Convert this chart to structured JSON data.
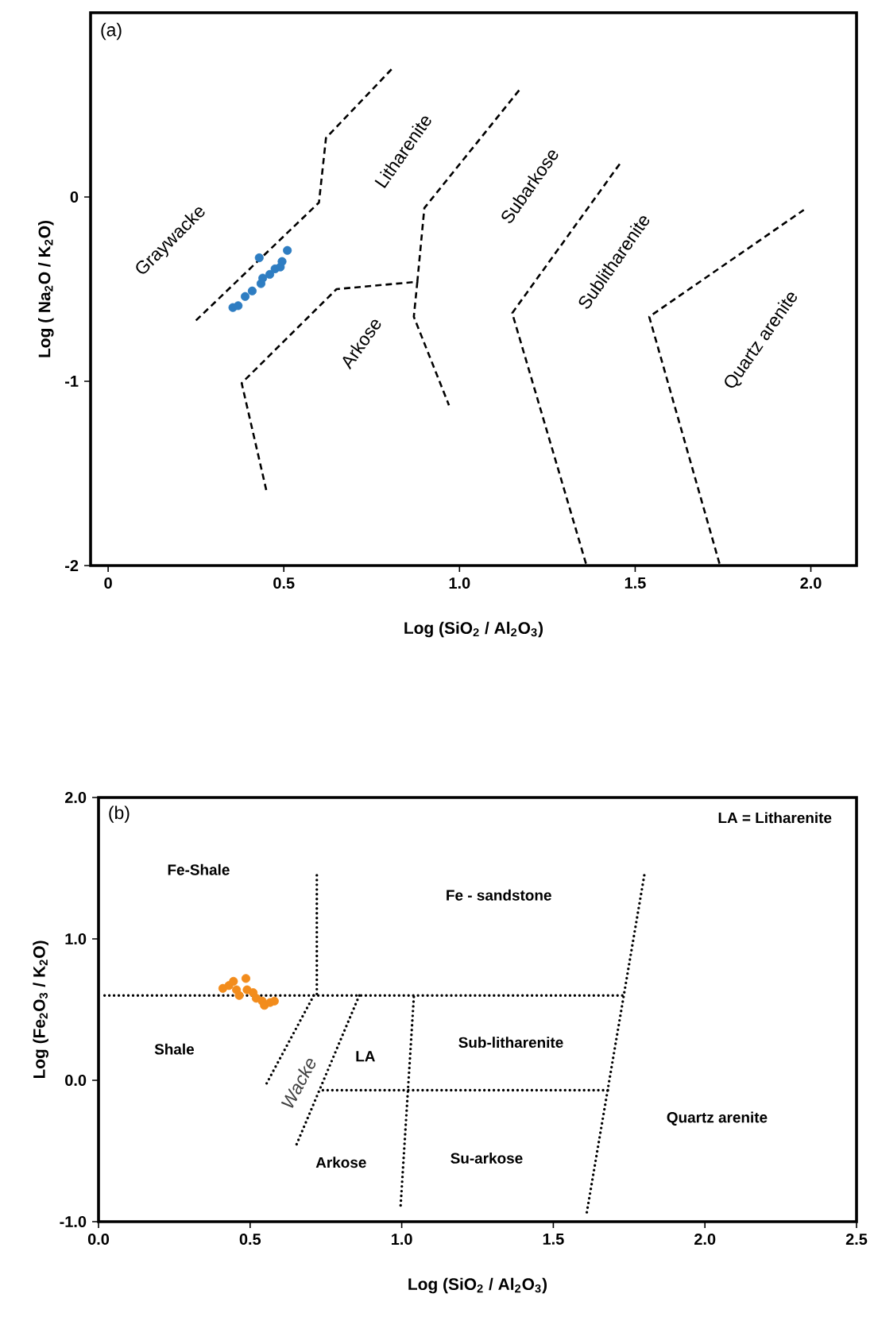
{
  "chart_data": [
    {
      "type": "scatter",
      "xlabel": "Log (SiO$_{2}$ / Al$_{2}$O$_{3}$)",
      "ylabel": "Log ( Na$_{2}$O / K$_{2}$O)",
      "xlim": [
        -0.05,
        2.13
      ],
      "ylim": [
        -2,
        1
      ],
      "xticks": [
        0,
        0.5,
        {
          "value": 1,
          "label": "1.0"
        },
        1.5,
        {
          "value": 2,
          "label": "2.0"
        }
      ],
      "yticks": [
        -2,
        -1,
        0
      ],
      "series": [
        {
          "marker": "circle",
          "color": "#2e7dc2",
          "x": [
            0.355,
            0.37,
            0.39,
            0.41,
            0.435,
            0.44,
            0.46,
            0.475,
            0.49,
            0.495,
            0.51,
            0.43
          ],
          "values": [
            -0.6,
            -0.59,
            -0.54,
            -0.51,
            -0.47,
            -0.44,
            -0.42,
            -0.39,
            -0.38,
            -0.35,
            -0.29,
            -0.33
          ]
        },
        {
          "type": "line",
          "line_style": "dashed",
          "color": "#000000",
          "x": [
            0.25,
            0.6,
            0.62,
            0.81
          ],
          "values": [
            -0.67,
            -0.03,
            0.32,
            0.7
          ]
        },
        {
          "type": "line",
          "line_style": "dashed",
          "color": "#000000",
          "x": [
            0.45,
            0.38,
            0.65,
            0.88,
            0.9,
            1.17
          ],
          "values": [
            -1.59,
            -1.01,
            -0.5,
            -0.46,
            -0.06,
            0.58
          ]
        },
        {
          "type": "line",
          "line_style": "dashed",
          "color": "#000000",
          "x": [
            0.88,
            0.87,
            0.97
          ],
          "values": [
            -0.46,
            -0.65,
            -1.13
          ]
        },
        {
          "type": "line",
          "line_style": "dashed",
          "color": "#000000",
          "x": [
            1.36,
            1.15,
            1.46
          ],
          "values": [
            -1.99,
            -0.63,
            0.19
          ]
        },
        {
          "type": "line",
          "line_style": "dashed",
          "color": "#000000",
          "x": [
            1.74,
            1.54,
            1.98
          ],
          "values": [
            -1.99,
            -0.65,
            -0.07
          ]
        }
      ],
      "annotations": [
        "(a)",
        "Graywacke",
        "Litharenite",
        "Subarkose",
        "Sublitharenite",
        "Quartz arenite",
        "Arkose"
      ]
    },
    {
      "type": "scatter",
      "xlabel": "Log (SiO$_{2}$ / Al$_{2}$O$_{3}$)",
      "ylabel": "Log (Fe$_{2}$O$_{3}$ / K$_{2}$O)",
      "xlim": [
        0,
        2.5
      ],
      "ylim": [
        -1,
        2
      ],
      "xticks": [
        {
          "value": 0,
          "label": "0.0"
        },
        0.5,
        {
          "value": 1,
          "label": "1.0"
        },
        1.5,
        {
          "value": 2,
          "label": "2.0"
        },
        2.5
      ],
      "yticks": [
        {
          "value": -1,
          "label": "-1.0"
        },
        {
          "value": 0,
          "label": "0.0"
        },
        {
          "value": 1,
          "label": "1.0"
        },
        {
          "value": 2,
          "label": "2.0"
        }
      ],
      "series": [
        {
          "marker": "circle",
          "color": "#f28c1c",
          "x": [
            0.41,
            0.43,
            0.445,
            0.486,
            0.464,
            0.455,
            0.49,
            0.51,
            0.52,
            0.54,
            0.547,
            0.566,
            0.58
          ],
          "values": [
            0.65,
            0.67,
            0.7,
            0.72,
            0.6,
            0.64,
            0.64,
            0.62,
            0.58,
            0.56,
            0.53,
            0.55,
            0.56
          ]
        },
        {
          "type": "line",
          "line_style": "dotted",
          "color": "#000000",
          "x": [
            0.02,
            1.74
          ],
          "values": [
            0.6,
            0.6
          ]
        },
        {
          "type": "line",
          "line_style": "dotted",
          "color": "#000000",
          "x": [
            0.72,
            0.72
          ],
          "values": [
            1.45,
            0.6
          ]
        },
        {
          "type": "line",
          "line_style": "dotted",
          "color": "#000000",
          "x": [
            0.71,
            0.55
          ],
          "values": [
            0.6,
            -0.04
          ]
        },
        {
          "type": "line",
          "line_style": "dotted",
          "color": "#000000",
          "x": [
            0.86,
            0.65
          ],
          "values": [
            0.6,
            -0.47
          ]
        },
        {
          "type": "line",
          "line_style": "dotted",
          "color": "#000000",
          "x": [
            1.04,
            0.996
          ],
          "values": [
            0.59,
            -0.9
          ]
        },
        {
          "type": "line",
          "line_style": "dotted",
          "color": "#000000",
          "x": [
            0.74,
            1.69
          ],
          "values": [
            -0.07,
            -0.07
          ]
        },
        {
          "type": "line",
          "line_style": "dotted",
          "color": "#000000",
          "x": [
            1.8,
            1.61
          ],
          "values": [
            1.45,
            -0.94
          ]
        }
      ],
      "annotations": [
        "(b)",
        "LA = Litharenite",
        "Fe-Shale",
        "Fe - sandstone",
        "Shale",
        "Wacke",
        "LA",
        "Sub-litharenite",
        "Quartz arenite",
        "Arkose",
        "Su-arkose"
      ]
    }
  ]
}
